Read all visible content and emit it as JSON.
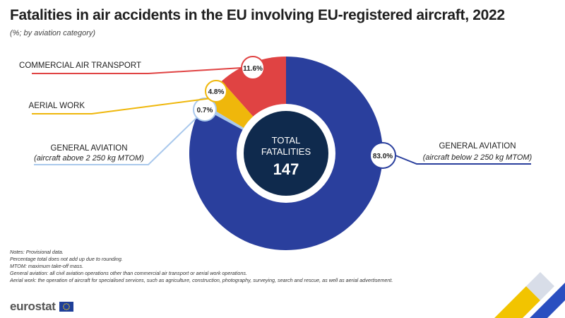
{
  "header": {
    "title": "Fatalities in air accidents in the EU involving EU-registered aircraft, 2022",
    "subtitle": "(%; by aviation category)"
  },
  "chart_data": {
    "type": "pie",
    "variant": "donut",
    "title": "Fatalities in air accidents in the EU involving EU-registered aircraft, 2022",
    "subtitle": "(%; by aviation category)",
    "unit": "%",
    "center_label": [
      "TOTAL",
      "FATALITIES"
    ],
    "center_value": "147",
    "slices": [
      {
        "name": "GENERAL AVIATION",
        "detail": "(aircraft below 2 250 kg MTOM)",
        "value": 83.0,
        "label": "83.0%",
        "color": "#2a3f9d"
      },
      {
        "name": "GENERAL AVIATION",
        "detail": "(aircraft above 2 250 kg MTOM)",
        "value": 0.7,
        "label": "0.7%",
        "color": "#a9c8ec"
      },
      {
        "name": "AERIAL WORK",
        "detail": "",
        "value": 4.8,
        "label": "4.8%",
        "color": "#efb70b"
      },
      {
        "name": "COMMERCIAL AIR TRANSPORT",
        "detail": "",
        "value": 11.6,
        "label": "11.6%",
        "color": "#e04343"
      }
    ],
    "center_color": "#0f2a4d"
  },
  "notes": [
    "Notes: Provisional data.",
    "Percentage total does not add up due to rounding.",
    "MTOM: maximum take-off mass.",
    "General aviation: all civil aviation operations other than commercial air transport or aerial work operations.",
    "Aerial work: the operation of aircraft for specialised services, such as agriculture, construction, photography, surveying, search and rescue, as well as aerial advertisement."
  ],
  "footer": {
    "logo_text": "eurostat",
    "flag_color": "#1f3f99",
    "star_color": "#ffd617"
  }
}
